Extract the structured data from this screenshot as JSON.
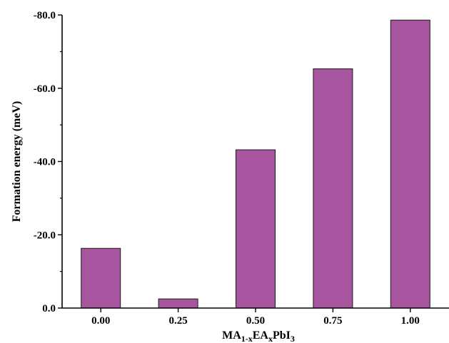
{
  "chart_data": {
    "type": "bar",
    "categories": [
      "0.00",
      "0.25",
      "0.50",
      "0.75",
      "1.00"
    ],
    "values": [
      16.3,
      2.5,
      43.2,
      65.3,
      78.6
    ],
    "ylabel": "Formation energy (meV)",
    "xlabel": {
      "parts": [
        {
          "text": "MA",
          "role": "normal"
        },
        {
          "text": "1-x",
          "role": "sub"
        },
        {
          "text": "EA",
          "role": "normal"
        },
        {
          "text": "x",
          "role": "sub"
        },
        {
          "text": "PbI",
          "role": "normal"
        },
        {
          "text": "3",
          "role": "sub"
        }
      ]
    },
    "ylim": [
      0,
      80
    ],
    "y_ticks": [
      {
        "value": 0,
        "label": "0.0"
      },
      {
        "value": 20,
        "label": "-20.0"
      },
      {
        "value": 40,
        "label": "-40.0"
      },
      {
        "value": 60,
        "label": "-60.0"
      },
      {
        "value": 80,
        "label": "-80.0"
      }
    ],
    "y_minor_ticks": [
      10,
      30,
      50,
      70
    ],
    "bar_color": "#a855a0",
    "bar_edge_color": "#1a1a1a",
    "grid": false,
    "legend": "none"
  }
}
